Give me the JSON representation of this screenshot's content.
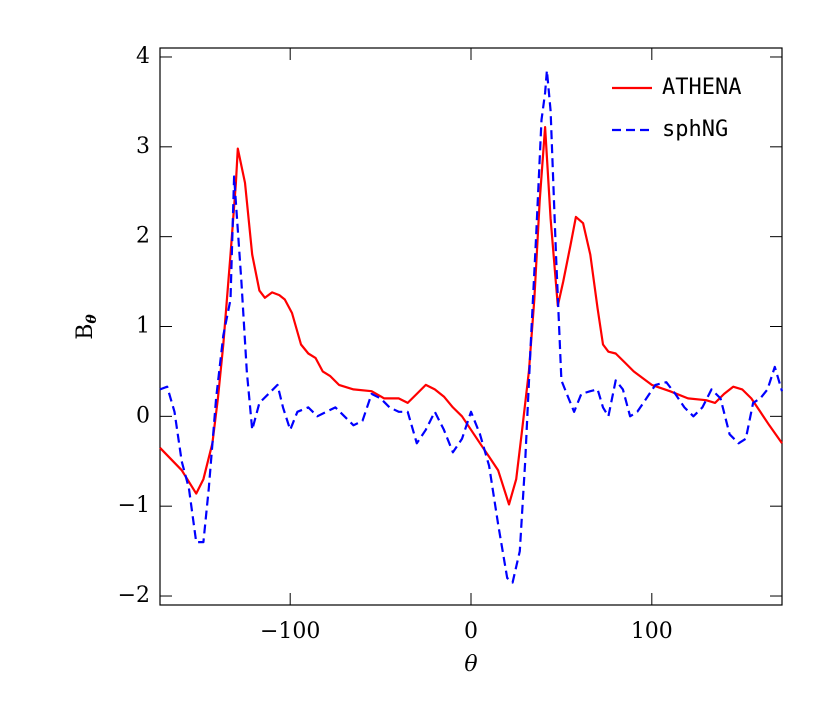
{
  "chart_data": {
    "type": "line",
    "xlabel": "θ",
    "ylabel": {
      "text": "B",
      "subscript": "θ"
    },
    "xlim": [
      -172,
      172
    ],
    "ylim": [
      -2.1,
      4.1
    ],
    "xticks": [
      {
        "value": -100,
        "label": "−100"
      },
      0,
      100
    ],
    "yticks": [
      {
        "value": -2,
        "label": "−2"
      },
      {
        "value": -1,
        "label": "−1"
      },
      0,
      1,
      2,
      3,
      4
    ],
    "legend": "upper right",
    "series": [
      {
        "name": "ATHENA",
        "color": "#ff0000",
        "dash": "solid",
        "x": [
          -172,
          -160,
          -152,
          -148,
          -143,
          -140,
          -137,
          -133,
          -130,
          -129,
          -125,
          -121,
          -117,
          -114,
          -110,
          -106,
          -103,
          -99,
          -94,
          -90,
          -86,
          -82,
          -78,
          -73,
          -65,
          -55,
          -48,
          -40,
          -35,
          -30,
          -25,
          -20,
          -15,
          -10,
          -5,
          0,
          5,
          10,
          15,
          21,
          25,
          28,
          32,
          35,
          38,
          41,
          44,
          48,
          51,
          55,
          58,
          62,
          66,
          70,
          73,
          76,
          80,
          85,
          90,
          100,
          110,
          120,
          130,
          135,
          140,
          145,
          150,
          155,
          160,
          165,
          172
        ],
        "values": [
          -0.35,
          -0.6,
          -0.86,
          -0.7,
          -0.3,
          0.2,
          0.8,
          1.8,
          2.6,
          2.98,
          2.6,
          1.8,
          1.4,
          1.32,
          1.38,
          1.35,
          1.3,
          1.15,
          0.8,
          0.7,
          0.65,
          0.5,
          0.45,
          0.35,
          0.3,
          0.28,
          0.2,
          0.2,
          0.15,
          0.25,
          0.35,
          0.3,
          0.22,
          0.1,
          0,
          -0.15,
          -0.3,
          -0.45,
          -0.6,
          -0.98,
          -0.7,
          -0.2,
          0.5,
          1.3,
          2.4,
          3.22,
          2.2,
          1.23,
          1.5,
          1.9,
          2.22,
          2.15,
          1.8,
          1.2,
          0.8,
          0.72,
          0.7,
          0.6,
          0.5,
          0.35,
          0.28,
          0.2,
          0.18,
          0.15,
          0.25,
          0.33,
          0.3,
          0.2,
          0.05,
          -0.1,
          -0.3
        ]
      },
      {
        "name": "sphNG",
        "color": "#0000ff",
        "dash": "dashed",
        "x": [
          -172,
          -168,
          -164,
          -160,
          -156,
          -152,
          -148,
          -145,
          -141,
          -137,
          -133,
          -131,
          -127,
          -124,
          -121,
          -117,
          -112,
          -107,
          -104,
          -100,
          -96,
          -90,
          -85,
          -80,
          -75,
          -70,
          -65,
          -60,
          -55,
          -50,
          -45,
          -40,
          -35,
          -30,
          -25,
          -20,
          -15,
          -10,
          -5,
          0,
          5,
          10,
          15,
          20,
          23,
          27,
          30,
          33,
          36,
          39,
          41,
          42,
          44,
          47,
          50,
          54,
          57,
          61,
          66,
          70,
          73,
          76,
          80,
          84,
          88,
          92,
          97,
          102,
          108,
          113,
          118,
          123,
          128,
          133,
          138,
          143,
          148,
          152,
          156,
          160,
          164,
          168,
          172
        ],
        "values": [
          0.3,
          0.33,
          0.05,
          -0.5,
          -0.8,
          -1.4,
          -1.4,
          -0.8,
          0.2,
          0.9,
          1.3,
          2.67,
          1.5,
          0.5,
          -0.15,
          0.15,
          0.25,
          0.35,
          0.1,
          -0.15,
          0.05,
          0.1,
          0,
          0.05,
          0.1,
          0,
          -0.1,
          -0.05,
          0.25,
          0.2,
          0.1,
          0.05,
          0.05,
          -0.3,
          -0.15,
          0.05,
          -0.15,
          -0.4,
          -0.25,
          0.05,
          -0.2,
          -0.55,
          -1.2,
          -1.8,
          -1.85,
          -1.5,
          -0.5,
          0.8,
          2.0,
          3.3,
          3.6,
          3.85,
          3.4,
          1.8,
          0.4,
          0.2,
          0.05,
          0.25,
          0.28,
          0.3,
          0.1,
          0,
          0.4,
          0.3,
          0,
          0.05,
          0.2,
          0.35,
          0.38,
          0.25,
          0.1,
          0,
          0.1,
          0.3,
          0.2,
          -0.2,
          -0.3,
          -0.25,
          0.15,
          0.2,
          0.3,
          0.55,
          0.28
        ]
      }
    ]
  }
}
